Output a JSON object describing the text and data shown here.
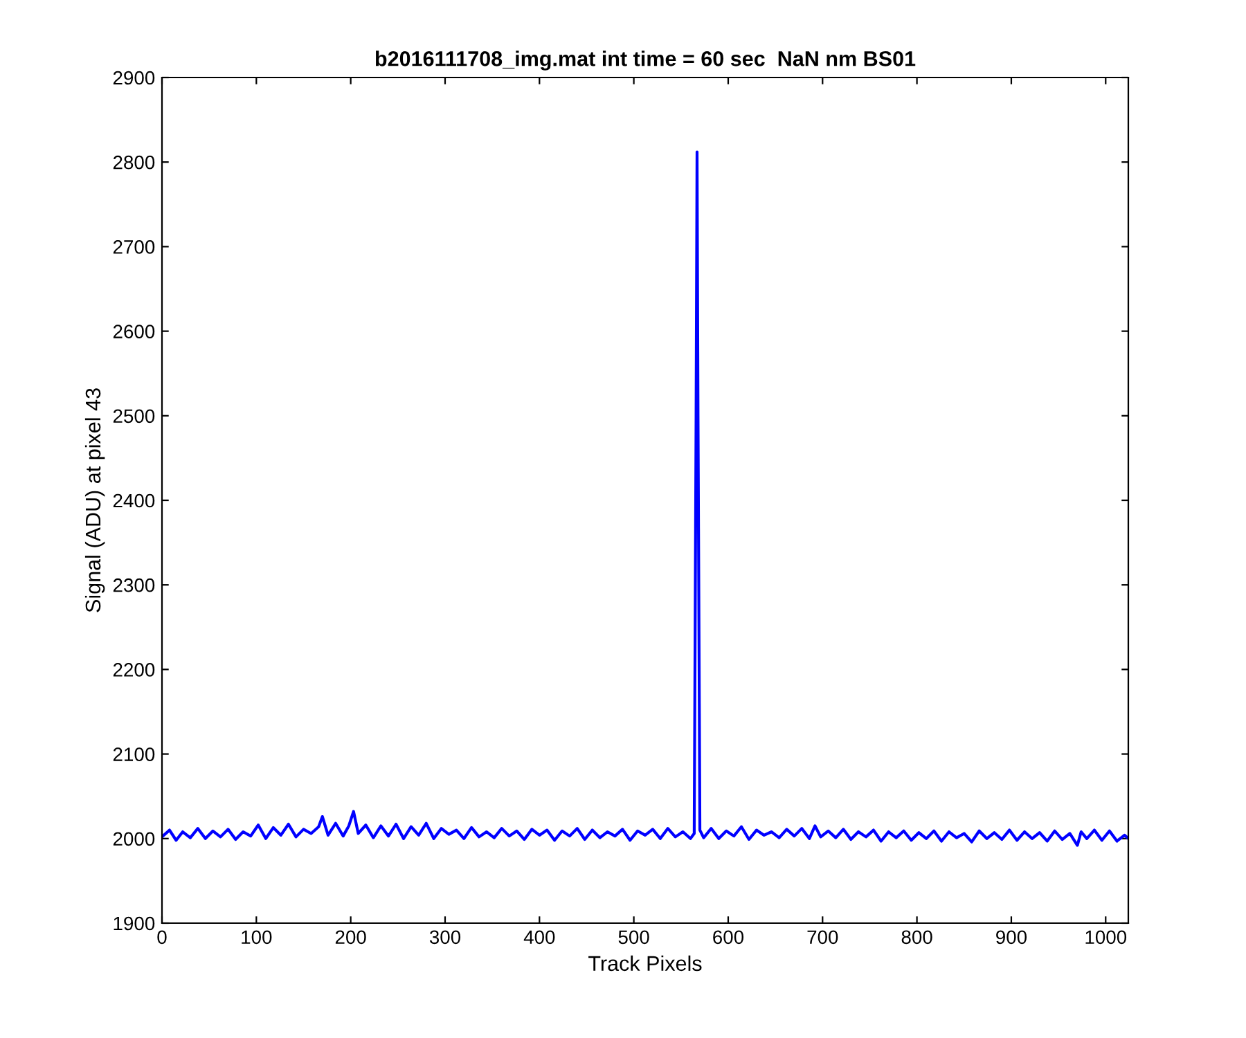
{
  "chart_data": {
    "type": "line",
    "title": "b2016111708_img.mat int time = 60 sec  NaN nm BS01",
    "xlabel": "Track Pixels",
    "ylabel": "Signal (ADU) at pixel 43",
    "xlim": [
      0,
      1024
    ],
    "ylim": [
      1900,
      2900
    ],
    "xticks": [
      0,
      100,
      200,
      300,
      400,
      500,
      600,
      700,
      800,
      900,
      1000
    ],
    "yticks": [
      1900,
      2000,
      2100,
      2200,
      2300,
      2400,
      2500,
      2600,
      2700,
      2800,
      2900
    ],
    "grid": false,
    "legend": false,
    "series": [
      {
        "color": "#0000ff",
        "x": [
          1,
          8,
          15,
          22,
          30,
          38,
          46,
          54,
          62,
          70,
          78,
          86,
          94,
          102,
          110,
          118,
          126,
          134,
          142,
          150,
          158,
          166,
          170,
          176,
          184,
          192,
          198,
          203,
          208,
          216,
          224,
          232,
          240,
          248,
          256,
          264,
          272,
          280,
          288,
          296,
          304,
          312,
          320,
          328,
          336,
          344,
          352,
          360,
          368,
          376,
          384,
          392,
          400,
          408,
          416,
          424,
          432,
          440,
          448,
          456,
          464,
          472,
          480,
          488,
          496,
          504,
          512,
          520,
          528,
          536,
          544,
          552,
          560,
          564,
          566,
          567,
          568,
          570,
          574,
          582,
          590,
          598,
          606,
          614,
          622,
          630,
          638,
          646,
          654,
          662,
          670,
          678,
          686,
          692,
          698,
          706,
          714,
          722,
          730,
          738,
          746,
          754,
          762,
          770,
          778,
          786,
          794,
          802,
          810,
          818,
          826,
          834,
          842,
          850,
          858,
          866,
          874,
          882,
          890,
          898,
          906,
          914,
          922,
          930,
          938,
          946,
          954,
          962,
          970,
          974,
          980,
          988,
          996,
          1004,
          1012,
          1020,
          1024
        ],
        "values": [
          2003,
          2010,
          1998,
          2008,
          2001,
          2012,
          2000,
          2009,
          2002,
          2011,
          1999,
          2008,
          2003,
          2016,
          2000,
          2013,
          2004,
          2017,
          2002,
          2011,
          2006,
          2014,
          2026,
          2004,
          2018,
          2003,
          2015,
          2032,
          2006,
          2016,
          2001,
          2015,
          2003,
          2017,
          2000,
          2014,
          2004,
          2018,
          2000,
          2012,
          2005,
          2010,
          2000,
          2013,
          2002,
          2008,
          2001,
          2012,
          2003,
          2009,
          1999,
          2011,
          2004,
          2010,
          1998,
          2009,
          2003,
          2012,
          1999,
          2010,
          2001,
          2008,
          2003,
          2011,
          1998,
          2009,
          2004,
          2011,
          2000,
          2012,
          2002,
          2008,
          2000,
          2006,
          2500,
          2812,
          2500,
          2010,
          2001,
          2012,
          2000,
          2009,
          2003,
          2014,
          1999,
          2010,
          2004,
          2008,
          2001,
          2011,
          2003,
          2012,
          2000,
          2015,
          2002,
          2009,
          2001,
          2011,
          1999,
          2008,
          2002,
          2010,
          1997,
          2008,
          2001,
          2009,
          1998,
          2007,
          2000,
          2009,
          1997,
          2008,
          2001,
          2006,
          1996,
          2009,
          2000,
          2007,
          1999,
          2010,
          1998,
          2008,
          2000,
          2007,
          1997,
          2009,
          1999,
          2006,
          1992,
          2008,
          2000,
          2010,
          1998,
          2009,
          1997,
          2004,
          2000
        ]
      }
    ]
  }
}
